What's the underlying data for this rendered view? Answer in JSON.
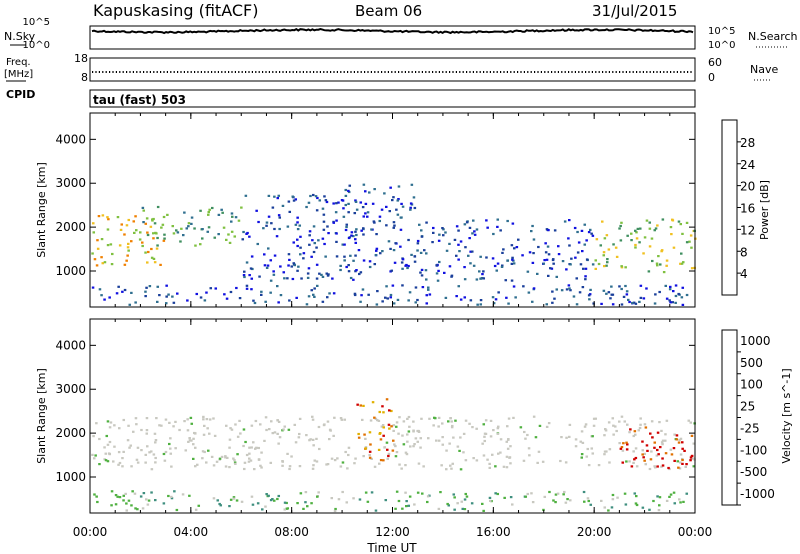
{
  "header": {
    "station": "Kapuskasing (fitACF)",
    "beam": "Beam 06",
    "date": "31/Jul/2015"
  },
  "left_labels": {
    "nsky": "N.Sky",
    "freq_line1": "Freq.",
    "freq_line2": "[MHz]",
    "cpid": "CPID"
  },
  "right_labels": {
    "nsearch": "N.Search",
    "nave": "Nave"
  },
  "noise_panel": {
    "left_ticks": [
      "10^5",
      "10^0"
    ],
    "right_ticks": [
      "10^5",
      "10^0"
    ]
  },
  "freq_panel": {
    "left_ticks": [
      "18",
      "8"
    ],
    "right_ticks": [
      "60",
      "0"
    ]
  },
  "cpid_text": "tau (fast) 503",
  "time_axis": {
    "label": "Time UT",
    "ticks": [
      "00:00",
      "04:00",
      "08:00",
      "12:00",
      "16:00",
      "20:00",
      "00:00"
    ]
  },
  "colors": {
    "ground_scatter": "#c8c8c0",
    "power_scale": [
      "#1010e0",
      "#1a3f9a",
      "#2f6f8f",
      "#3f8f5f",
      "#7fc040",
      "#f0c020",
      "#f08000",
      "#e02000"
    ],
    "velocity_scale": [
      "#1010c0",
      "#1f50a0",
      "#3f8f7f",
      "#4fb040",
      "#c8c8c0",
      "#e0b000",
      "#e07000",
      "#d00000"
    ]
  },
  "chart_data": [
    {
      "type": "heatmap",
      "title": "Power",
      "xlabel": "",
      "ylabel": "Slant Range [km]",
      "xlim": [
        "00:00",
        "24:00"
      ],
      "ylim": [
        180,
        4600
      ],
      "yticks": [
        1000,
        2000,
        3000,
        4000
      ],
      "colorbar": {
        "label": "Power [dB]",
        "ticks": [
          "4",
          "8",
          "12",
          "16",
          "20",
          "24",
          "28"
        ],
        "range": [
          0,
          30
        ]
      },
      "regions": [
        {
          "t": [
            0,
            3
          ],
          "r": [
            1100,
            2300
          ],
          "dominant_db": 24
        },
        {
          "t": [
            2,
            6
          ],
          "r": [
            1600,
            2500
          ],
          "dominant_db": 14
        },
        {
          "t": [
            6,
            11
          ],
          "r": [
            800,
            2800
          ],
          "dominant_db": 8
        },
        {
          "t": [
            10,
            13
          ],
          "r": [
            1000,
            3000
          ],
          "dominant_db": 8
        },
        {
          "t": [
            13,
            20
          ],
          "r": [
            800,
            2200
          ],
          "dominant_db": 8
        },
        {
          "t": [
            20,
            24
          ],
          "r": [
            1000,
            2200
          ],
          "dominant_db": 18
        },
        {
          "t": [
            0,
            24
          ],
          "r": [
            250,
            700
          ],
          "dominant_db": 8
        }
      ]
    },
    {
      "type": "heatmap",
      "title": "Velocity",
      "xlabel": "Time UT",
      "ylabel": "Slant Range [km]",
      "xlim": [
        "00:00",
        "24:00"
      ],
      "ylim": [
        180,
        4600
      ],
      "yticks": [
        1000,
        2000,
        3000,
        4000
      ],
      "colorbar": {
        "label": "Velocity [m s^-1]",
        "ticks": [
          "-1000",
          "-500",
          "-100",
          "-25",
          "25",
          "100",
          "500",
          "1000"
        ]
      },
      "regions": [
        {
          "t": [
            0,
            24
          ],
          "r": [
            1200,
            2400
          ],
          "dominant": "ground scatter"
        },
        {
          "t": [
            10.5,
            12
          ],
          "r": [
            1400,
            2800
          ],
          "dominant_ms": -300
        },
        {
          "t": [
            21,
            24
          ],
          "r": [
            1200,
            2200
          ],
          "dominant_ms": -600
        },
        {
          "t": [
            0,
            24
          ],
          "r": [
            250,
            700
          ],
          "dominant_ms": 50
        }
      ]
    }
  ]
}
